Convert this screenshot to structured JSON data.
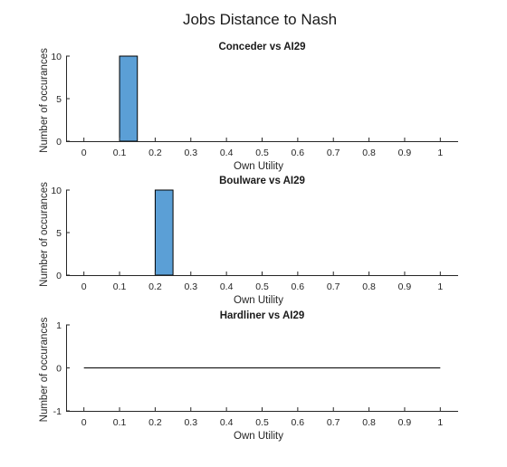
{
  "figure": {
    "title": "Jobs Distance to Nash"
  },
  "chart_data": [
    {
      "type": "bar",
      "title": "Conceder vs AI29",
      "xlabel": "Own Utility",
      "ylabel": "Number of occurances",
      "xlim": [
        -0.05,
        1.05
      ],
      "ylim": [
        0,
        10
      ],
      "xticks": [
        "0",
        "0.1",
        "0.2",
        "0.3",
        "0.4",
        "0.5",
        "0.6",
        "0.7",
        "0.8",
        "0.9",
        "1"
      ],
      "yticks": [
        "0",
        "5",
        "10"
      ],
      "bins": [
        {
          "x0": 0.1,
          "x1": 0.15,
          "count": 10
        }
      ],
      "bar_color": "#5b9fd6",
      "grid": false
    },
    {
      "type": "bar",
      "title": "Boulware vs AI29",
      "xlabel": "Own Utility",
      "ylabel": "Number of occurances",
      "xlim": [
        -0.05,
        1.05
      ],
      "ylim": [
        0,
        10
      ],
      "xticks": [
        "0",
        "0.1",
        "0.2",
        "0.3",
        "0.4",
        "0.5",
        "0.6",
        "0.7",
        "0.8",
        "0.9",
        "1"
      ],
      "yticks": [
        "0",
        "5",
        "10"
      ],
      "bins": [
        {
          "x0": 0.2,
          "x1": 0.25,
          "count": 10
        }
      ],
      "bar_color": "#5b9fd6",
      "grid": false
    },
    {
      "type": "bar",
      "title": "Hardliner vs AI29",
      "xlabel": "Own Utility",
      "ylabel": "Number of occurances",
      "xlim": [
        -0.05,
        1.05
      ],
      "ylim": [
        -1,
        1
      ],
      "xticks": [
        "0",
        "0.1",
        "0.2",
        "0.3",
        "0.4",
        "0.5",
        "0.6",
        "0.7",
        "0.8",
        "0.9",
        "1"
      ],
      "yticks": [
        "-1",
        "0",
        "1"
      ],
      "bins": [],
      "baseline": {
        "y": 0,
        "x0": 0,
        "x1": 1
      },
      "bar_color": "#5b9fd6",
      "grid": false
    }
  ]
}
